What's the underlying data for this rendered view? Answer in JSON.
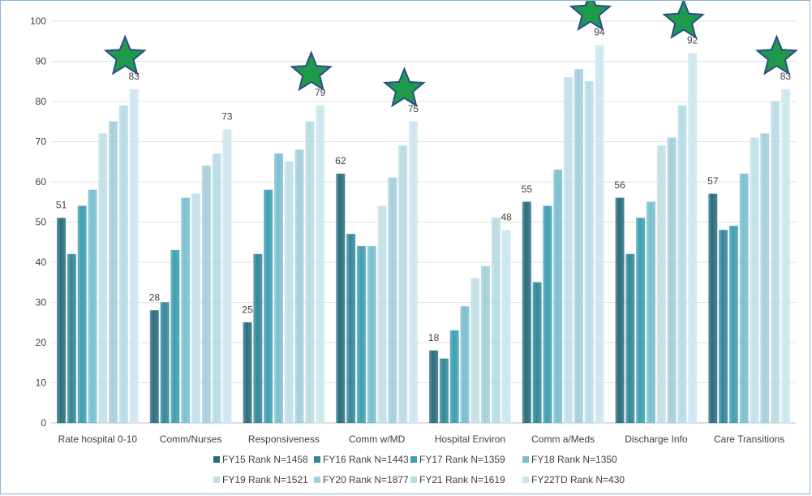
{
  "chart_data": {
    "type": "bar",
    "categories": [
      "Rate hospital 0-10",
      "Comm/Nurses",
      "Responsiveness",
      "Comm w/MD",
      "Hospital Environ",
      "Comm a/Meds",
      "Discharge Info",
      "Care Transitions"
    ],
    "series": [
      {
        "name": "FY15 Rank N=1458",
        "values": [
          51,
          28,
          25,
          62,
          18,
          55,
          56,
          57
        ]
      },
      {
        "name": "FY16 Rank N=1443",
        "values": [
          42,
          30,
          42,
          47,
          16,
          35,
          42,
          48
        ]
      },
      {
        "name": "FY17 Rank N=1359",
        "values": [
          54,
          43,
          58,
          44,
          23,
          54,
          51,
          49
        ]
      },
      {
        "name": "FY18 Rank N=1350",
        "values": [
          58,
          56,
          67,
          44,
          29,
          63,
          55,
          62
        ]
      },
      {
        "name": "FY19 Rank N=1521",
        "values": [
          72,
          57,
          65,
          54,
          36,
          86,
          69,
          71
        ]
      },
      {
        "name": "FY20 Rank N=1877",
        "values": [
          75,
          64,
          68,
          61,
          39,
          88,
          71,
          72
        ]
      },
      {
        "name": "FY21 Rank N=1619",
        "values": [
          79,
          67,
          75,
          69,
          51,
          85,
          79,
          80
        ]
      },
      {
        "name": "FY22TD Rank N=430",
        "values": [
          83,
          73,
          79,
          75,
          48,
          94,
          92,
          83
        ]
      }
    ],
    "data_labels": {
      "first_series": [
        "51",
        "28",
        "25",
        "62",
        "18",
        "55",
        "56",
        "57"
      ],
      "last_series": [
        "83",
        "73",
        "79",
        "75",
        "48",
        "94",
        "92",
        "83"
      ]
    },
    "star_categories": [
      "Rate hospital 0-10",
      "Responsiveness",
      "Comm w/MD",
      "Comm a/Meds",
      "Discharge Info",
      "Care Transitions"
    ],
    "ylim": [
      0,
      100
    ],
    "yticks": [
      "0",
      "10",
      "20",
      "30",
      "40",
      "50",
      "60",
      "70",
      "80",
      "90",
      "100"
    ],
    "legend_position": "bottom",
    "grid": true,
    "colors": [
      "#2b6e7e",
      "#34879a",
      "#3e9fb3",
      "#7bbfd0",
      "#c3dfe8",
      "#a5cfdc",
      "#b9dbe6",
      "#cde6ef"
    ],
    "star_color": "#1f9a4a",
    "title": "",
    "xlabel": "",
    "ylabel": ""
  }
}
